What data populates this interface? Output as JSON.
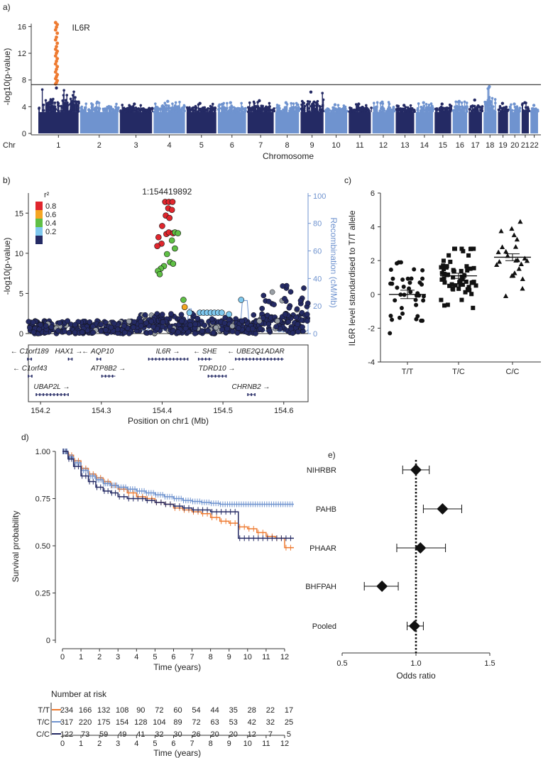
{
  "panels": {
    "a": "a)",
    "b": "b)",
    "c": "c)",
    "d": "d)",
    "e": "e)"
  },
  "chart_data": [
    {
      "type": "scatter",
      "panel": "a",
      "subtype": "manhattan",
      "xlabel": "Chromosome",
      "x_prefix": "Chr",
      "ylabel": "-log10(p-value)",
      "ylim": [
        0,
        17
      ],
      "yticks": [
        0,
        4,
        8,
        12,
        16
      ],
      "significance_line": 7.3,
      "annotation": "IL6R",
      "chromosomes": [
        {
          "label": "1",
          "peak": 6.8,
          "color": "#242a64"
        },
        {
          "label": "2",
          "peak": 4.7,
          "color": "#6f93cf"
        },
        {
          "label": "3",
          "peak": 4.4,
          "color": "#242a64"
        },
        {
          "label": "4",
          "peak": 4.8,
          "color": "#6f93cf"
        },
        {
          "label": "5",
          "peak": 4.5,
          "color": "#242a64"
        },
        {
          "label": "6",
          "peak": 4.6,
          "color": "#6f93cf"
        },
        {
          "label": "7",
          "peak": 4.9,
          "color": "#242a64"
        },
        {
          "label": "8",
          "peak": 4.6,
          "color": "#6f93cf"
        },
        {
          "label": "9",
          "peak": 6.2,
          "color": "#242a64"
        },
        {
          "label": "10",
          "peak": 4.3,
          "color": "#6f93cf"
        },
        {
          "label": "11",
          "peak": 4.4,
          "color": "#242a64"
        },
        {
          "label": "12",
          "peak": 4.7,
          "color": "#6f93cf"
        },
        {
          "label": "13",
          "peak": 4.2,
          "color": "#242a64"
        },
        {
          "label": "14",
          "peak": 4.6,
          "color": "#6f93cf"
        },
        {
          "label": "15",
          "peak": 4.4,
          "color": "#242a64"
        },
        {
          "label": "16",
          "peak": 4.8,
          "color": "#6f93cf"
        },
        {
          "label": "17",
          "peak": 5.0,
          "color": "#242a64"
        },
        {
          "label": "18",
          "peak": 7.0,
          "color": "#6f93cf"
        },
        {
          "label": "19",
          "peak": 4.5,
          "color": "#242a64"
        },
        {
          "label": "20",
          "peak": 4.4,
          "color": "#6f93cf"
        },
        {
          "label": "21",
          "peak": 4.6,
          "color": "#242a64"
        },
        {
          "label": "22",
          "peak": 4.2,
          "color": "#6f93cf"
        }
      ],
      "highlight_points_color": "#ee7a30",
      "highlight_values": [
        7.4,
        7.6,
        7.9,
        8.2,
        8.5,
        8.8,
        9.2,
        9.6,
        10.0,
        10.4,
        10.8,
        11.2,
        11.6,
        12.0,
        12.3,
        12.6,
        13.0,
        13.5,
        14.0,
        14.4,
        15.0,
        15.5,
        15.9,
        16.3,
        16.6
      ]
    },
    {
      "type": "scatter",
      "panel": "b",
      "subtype": "regional-association",
      "xlabel": "Position on chr1 (Mb)",
      "ylabel": "-log10(p-value)",
      "y2label": "Recombination (cM/Mb)",
      "xlim": [
        154.18,
        154.64
      ],
      "xticks": [
        154.2,
        154.3,
        154.4,
        154.5,
        154.6
      ],
      "ylim": [
        0,
        17.5
      ],
      "yticks": [
        0,
        5,
        10,
        15
      ],
      "y2lim": [
        0,
        102
      ],
      "y2ticks": [
        0,
        20,
        40,
        60,
        80,
        100
      ],
      "lead_snp": "1:154419892",
      "legend_title": "r²",
      "legend": [
        {
          "label": "0.8",
          "color": "#e0262d"
        },
        {
          "label": "0.6",
          "color": "#f5a623"
        },
        {
          "label": "0.4",
          "color": "#5fbf45"
        },
        {
          "label": "0.2",
          "color": "#7fc8ee"
        },
        {
          "label": "",
          "color": "#242a64"
        }
      ],
      "highlight_points": [
        {
          "x": 154.405,
          "y": 16.4,
          "r2": 0
        },
        {
          "x": 154.411,
          "y": 16.4,
          "r2": 0
        },
        {
          "x": 154.417,
          "y": 16.4,
          "r2": 0
        },
        {
          "x": 154.41,
          "y": 15.6,
          "r2": 0
        },
        {
          "x": 154.416,
          "y": 15.4,
          "r2": 0
        },
        {
          "x": 154.406,
          "y": 14.7,
          "r2": 0
        },
        {
          "x": 154.412,
          "y": 14.4,
          "r2": 0
        },
        {
          "x": 154.4,
          "y": 13.4,
          "r2": 0
        },
        {
          "x": 154.407,
          "y": 12.4,
          "r2": 0
        },
        {
          "x": 154.411,
          "y": 12.6,
          "r2": 0
        },
        {
          "x": 154.418,
          "y": 12.5,
          "r2": 0
        },
        {
          "x": 154.394,
          "y": 12.0,
          "r2": 0
        },
        {
          "x": 154.399,
          "y": 11.2,
          "r2": 0
        },
        {
          "x": 154.392,
          "y": 10.9,
          "r2": 0
        },
        {
          "x": 154.421,
          "y": 12.6,
          "r2": 2
        },
        {
          "x": 154.426,
          "y": 12.5,
          "r2": 2
        },
        {
          "x": 154.416,
          "y": 11.6,
          "r2": 2
        },
        {
          "x": 154.421,
          "y": 10.6,
          "r2": 2
        },
        {
          "x": 154.408,
          "y": 9.9,
          "r2": 2
        },
        {
          "x": 154.413,
          "y": 8.9,
          "r2": 2
        },
        {
          "x": 154.418,
          "y": 8.7,
          "r2": 2
        },
        {
          "x": 154.403,
          "y": 8.4,
          "r2": 2
        },
        {
          "x": 154.398,
          "y": 8.1,
          "r2": 2
        },
        {
          "x": 154.393,
          "y": 7.8,
          "r2": 2
        },
        {
          "x": 154.396,
          "y": 7.4,
          "r2": 2
        },
        {
          "x": 154.435,
          "y": 4.2,
          "r2": 2
        },
        {
          "x": 154.437,
          "y": 3.3,
          "r2": 1
        },
        {
          "x": 154.445,
          "y": 2.6,
          "r2": 3
        },
        {
          "x": 154.462,
          "y": 2.6,
          "r2": 3
        },
        {
          "x": 154.468,
          "y": 2.6,
          "r2": 3
        },
        {
          "x": 154.474,
          "y": 2.6,
          "r2": 3
        },
        {
          "x": 154.48,
          "y": 2.6,
          "r2": 3
        },
        {
          "x": 154.486,
          "y": 2.6,
          "r2": 3
        },
        {
          "x": 154.492,
          "y": 2.6,
          "r2": 3
        },
        {
          "x": 154.498,
          "y": 2.6,
          "r2": 3
        },
        {
          "x": 154.51,
          "y": 2.4,
          "r2": 3
        },
        {
          "x": 154.53,
          "y": 4.2,
          "r2": 3
        }
      ],
      "genes": [
        {
          "label": "C1orf189",
          "dir": "left",
          "start": 154.178,
          "end": 154.186,
          "row": 0
        },
        {
          "label": "HAX1",
          "dir": "right",
          "start": 154.245,
          "end": 154.248,
          "row": 0
        },
        {
          "label": "AQP10",
          "dir": "left",
          "start": 154.292,
          "end": 154.296,
          "row": 0
        },
        {
          "label": "IL6R",
          "dir": "right",
          "start": 154.377,
          "end": 154.442,
          "row": 0
        },
        {
          "label": "SHE",
          "dir": "left",
          "start": 154.459,
          "end": 154.482,
          "row": 0
        },
        {
          "label": "UBE2Q1",
          "dir": "left",
          "start": 154.52,
          "end": 154.555,
          "row": 0
        },
        {
          "label": "ADAR",
          "dir": "left",
          "start": 154.555,
          "end": 154.6,
          "row": 0
        },
        {
          "label": "C1orf43",
          "dir": "left",
          "start": 154.179,
          "end": 154.186,
          "row": 1
        },
        {
          "label": "ATP8B2",
          "dir": "right",
          "start": 154.3,
          "end": 154.323,
          "row": 1
        },
        {
          "label": "TDRD10",
          "dir": "right",
          "start": 154.475,
          "end": 154.505,
          "row": 1
        },
        {
          "label": "UBAP2L",
          "dir": "right",
          "start": 154.192,
          "end": 154.245,
          "row": 2
        },
        {
          "label": "CHRNB2",
          "dir": "right",
          "start": 154.54,
          "end": 154.552,
          "row": 2
        }
      ]
    },
    {
      "type": "scatter",
      "panel": "c",
      "subtype": "dot-plot",
      "categories": [
        "T/T",
        "T/C",
        "C/C"
      ],
      "ylabel": "IL6R  level standardised to T/T allele",
      "ylim": [
        -4,
        6
      ],
      "yticks": [
        -4,
        -2,
        0,
        2,
        4,
        6
      ],
      "series": [
        {
          "category": "T/T",
          "marker": "circle",
          "mean": 0.0,
          "sem": 0.25,
          "min": -2.3,
          "max": 1.9,
          "n": 40
        },
        {
          "category": "T/C",
          "marker": "square",
          "mean": 1.1,
          "sem": 0.15,
          "min": -0.8,
          "max": 2.7,
          "n": 60
        },
        {
          "category": "C/C",
          "marker": "triangle",
          "mean": 2.2,
          "sem": 0.2,
          "min": -0.1,
          "max": 4.3,
          "n": 24
        }
      ]
    },
    {
      "type": "line",
      "panel": "d",
      "subtype": "kaplan-meier",
      "xlabel": "Time (years)",
      "ylabel": "Survival probability",
      "xlim": [
        0,
        12.5
      ],
      "xticks": [
        0,
        1,
        2,
        3,
        4,
        5,
        6,
        7,
        8,
        9,
        10,
        11,
        12
      ],
      "ylim": [
        0,
        1
      ],
      "yticks": [
        "0",
        "0.25",
        "0.50",
        "0.75",
        "1.00"
      ],
      "series": [
        {
          "name": "T/T",
          "color": "#ee7a30",
          "x": [
            0,
            0.3,
            0.6,
            1,
            1.4,
            1.8,
            2.2,
            2.6,
            3,
            3.5,
            4,
            4.5,
            5,
            5.5,
            6,
            6.5,
            7,
            7.5,
            8,
            8.5,
            9,
            9.5,
            10,
            10.5,
            11,
            11.5,
            12,
            12.5
          ],
          "y": [
            1.0,
            0.98,
            0.95,
            0.91,
            0.88,
            0.86,
            0.84,
            0.82,
            0.8,
            0.78,
            0.76,
            0.75,
            0.73,
            0.72,
            0.7,
            0.69,
            0.68,
            0.67,
            0.65,
            0.63,
            0.62,
            0.6,
            0.59,
            0.57,
            0.55,
            0.54,
            0.49,
            0.49
          ]
        },
        {
          "name": "T/C",
          "color": "#6f93cf",
          "x": [
            0,
            0.3,
            0.6,
            1,
            1.4,
            1.8,
            2.2,
            2.6,
            3,
            3.5,
            4,
            4.5,
            5,
            5.5,
            6,
            6.5,
            7,
            7.5,
            8,
            8.5,
            9,
            9.5,
            10,
            10.5,
            11,
            11.5,
            12,
            12.5
          ],
          "y": [
            1.0,
            0.97,
            0.94,
            0.9,
            0.87,
            0.85,
            0.83,
            0.82,
            0.81,
            0.8,
            0.79,
            0.78,
            0.77,
            0.76,
            0.75,
            0.74,
            0.735,
            0.73,
            0.725,
            0.72,
            0.72,
            0.72,
            0.72,
            0.72,
            0.72,
            0.72,
            0.72,
            0.72
          ]
        },
        {
          "name": "C/C",
          "color": "#242a64",
          "x": [
            0,
            0.3,
            0.6,
            1,
            1.4,
            1.8,
            2.2,
            2.6,
            3,
            3.5,
            4,
            4.5,
            5,
            5.5,
            6,
            6.5,
            7,
            7.5,
            8,
            8.5,
            9,
            9.5,
            10,
            10.5,
            11,
            11.5,
            12,
            12.5
          ],
          "y": [
            1.0,
            0.96,
            0.92,
            0.87,
            0.84,
            0.81,
            0.79,
            0.78,
            0.76,
            0.75,
            0.75,
            0.74,
            0.73,
            0.72,
            0.71,
            0.7,
            0.69,
            0.69,
            0.68,
            0.68,
            0.68,
            0.54,
            0.54,
            0.54,
            0.54,
            0.54,
            0.54,
            0.54
          ]
        }
      ],
      "risk_table": {
        "title": "Number at risk",
        "rows": [
          {
            "name": "T/T",
            "color": "#ee7a30",
            "values": [
              "234",
              "166",
              "132",
              "108",
              "90",
              "72",
              "60",
              "54",
              "44",
              "35",
              "28",
              "22",
              "17"
            ]
          },
          {
            "name": "T/C",
            "color": "#6f93cf",
            "values": [
              "317",
              "220",
              "175",
              "154",
              "128",
              "104",
              "89",
              "72",
              "63",
              "53",
              "42",
              "32",
              "25"
            ]
          },
          {
            "name": "C/C",
            "color": "#242a64",
            "values": [
              "122",
              "73",
              "59",
              "49",
              "41",
              "32",
              "30",
              "26",
              "20",
              "20",
              "12",
              "7",
              "5"
            ]
          }
        ],
        "xticks": [
          "0",
          "1",
          "2",
          "3",
          "4",
          "5",
          "6",
          "7",
          "8",
          "9",
          "10",
          "11",
          "12"
        ],
        "xlabel": "Time (years)"
      }
    },
    {
      "type": "scatter",
      "panel": "e",
      "subtype": "forest-plot",
      "xlabel": "Odds ratio",
      "xlim": [
        0.5,
        1.5
      ],
      "xticks": [
        "0.5",
        "1.0",
        "1.5"
      ],
      "reference_line": 1.0,
      "studies": [
        {
          "label": "NIHRBR",
          "or": 1.0,
          "lo": 0.91,
          "hi": 1.09
        },
        {
          "label": "PAHB",
          "or": 1.18,
          "lo": 1.05,
          "hi": 1.31
        },
        {
          "label": "PHAAR",
          "or": 1.03,
          "lo": 0.87,
          "hi": 1.2
        },
        {
          "label": "BHFPAH",
          "or": 0.77,
          "lo": 0.65,
          "hi": 0.88
        },
        {
          "label": "Pooled",
          "or": 0.99,
          "lo": 0.94,
          "hi": 1.05
        }
      ]
    }
  ]
}
